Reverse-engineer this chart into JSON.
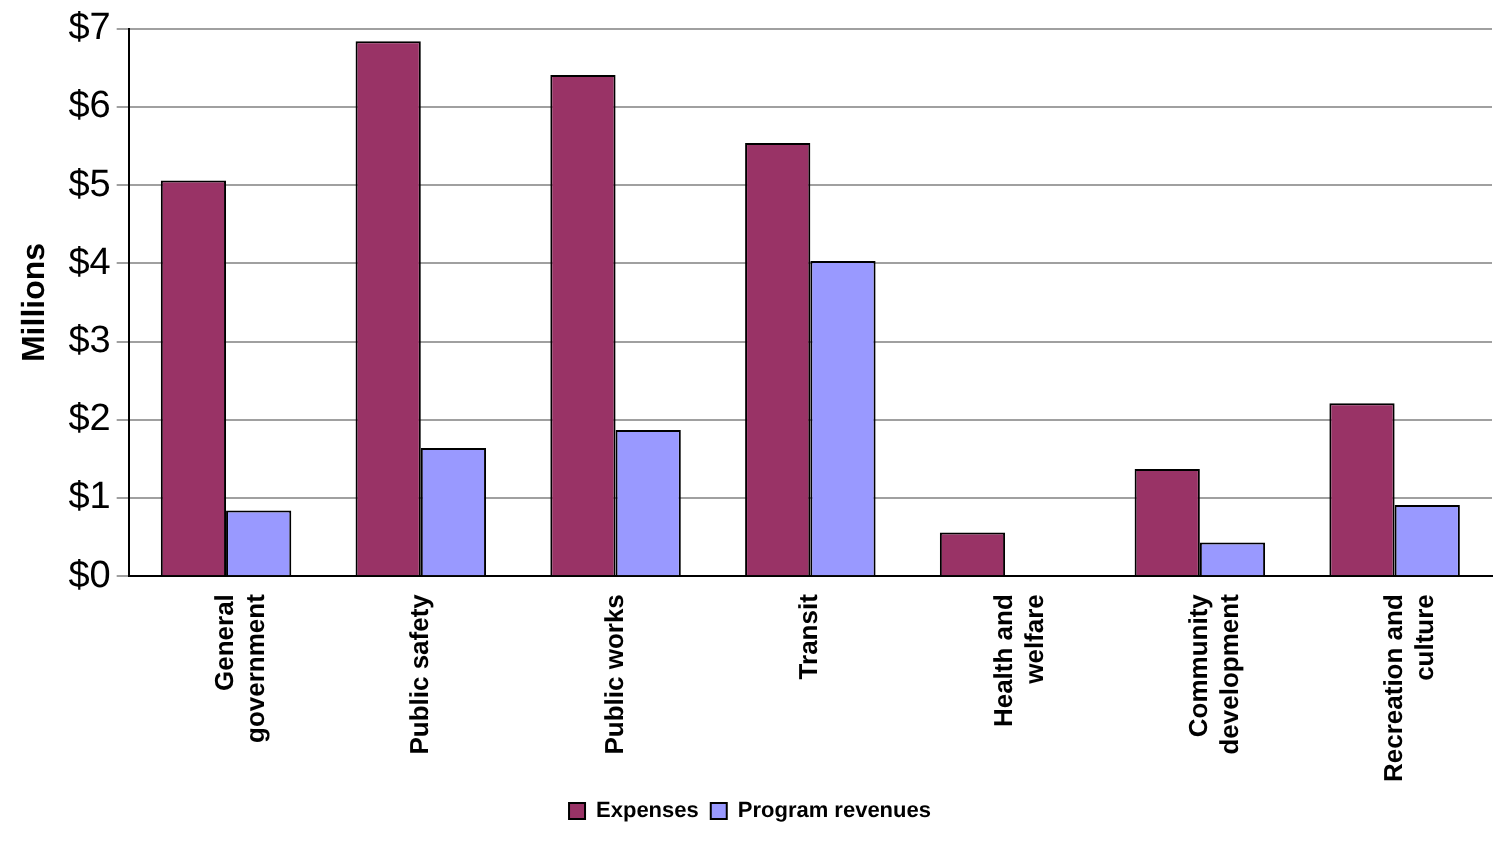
{
  "chart_data": {
    "type": "bar",
    "ylabel": "Millions",
    "categories": [
      "General government",
      "Public safety",
      "Public works",
      "Transit",
      "Health and welfare",
      "Community development",
      "Recreation and culture"
    ],
    "series": [
      {
        "name": "Expenses",
        "color": "#993366",
        "values": [
          5.06,
          6.84,
          6.41,
          5.54,
          0.56,
          1.37,
          2.21
        ]
      },
      {
        "name": "Program revenues",
        "color": "#9999ff",
        "values": [
          0.84,
          1.64,
          1.87,
          4.03,
          null,
          0.43,
          0.91
        ]
      }
    ],
    "ylim": [
      0,
      7
    ],
    "yticks": [
      {
        "value": 0,
        "label": "$0"
      },
      {
        "value": 1,
        "label": "$1"
      },
      {
        "value": 2,
        "label": "$2"
      },
      {
        "value": 3,
        "label": "$3"
      },
      {
        "value": 4,
        "label": "$4"
      },
      {
        "value": 5,
        "label": "$5"
      },
      {
        "value": 6,
        "label": "$6"
      },
      {
        "value": 7,
        "label": "$7"
      }
    ],
    "grid": "y",
    "legend": "bottom"
  }
}
